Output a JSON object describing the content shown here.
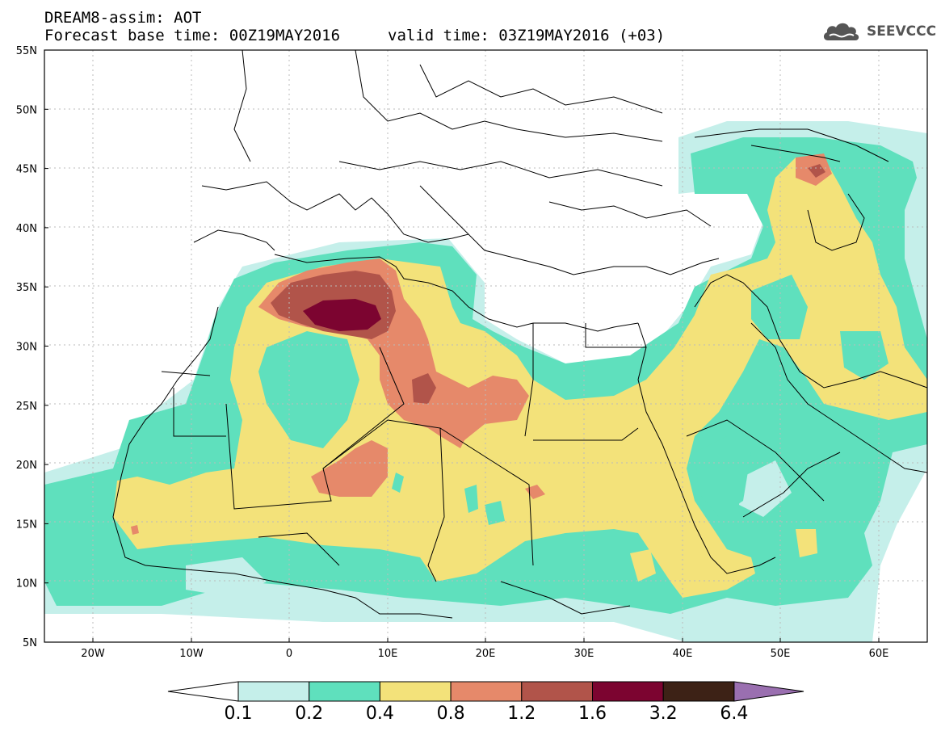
{
  "header": {
    "line1": "DREAM8-assim: AOT",
    "base_time": "Forecast base time: 00Z19MAY2016",
    "valid_time": "valid time: 03Z19MAY2016 (+03)"
  },
  "logo": {
    "text": "SEEVCCC",
    "icon": "cloud-icon"
  },
  "map": {
    "lat_labels": [
      "55N",
      "50N",
      "45N",
      "40N",
      "35N",
      "30N",
      "25N",
      "20N",
      "15N",
      "10N",
      "5N"
    ],
    "lon_labels": [
      "20W",
      "10W",
      "0",
      "10E",
      "20E",
      "30E",
      "40E",
      "50E",
      "60E"
    ],
    "grid": true
  },
  "colorbar": {
    "levels": [
      "0.1",
      "0.2",
      "0.4",
      "0.8",
      "1.2",
      "1.6",
      "3.2",
      "6.4"
    ],
    "colors": [
      "#ffffff",
      "#c5efea",
      "#5fe0bd",
      "#f3e27a",
      "#e6896a",
      "#b1544a",
      "#7c0430",
      "#3d2216",
      "#9a6fb0"
    ]
  },
  "colors": {
    "c01": "#c5efea",
    "c02": "#5fe0bd",
    "c04": "#f3e27a",
    "c08": "#e6896a",
    "c12": "#b1544a",
    "c16": "#7c0430"
  }
}
